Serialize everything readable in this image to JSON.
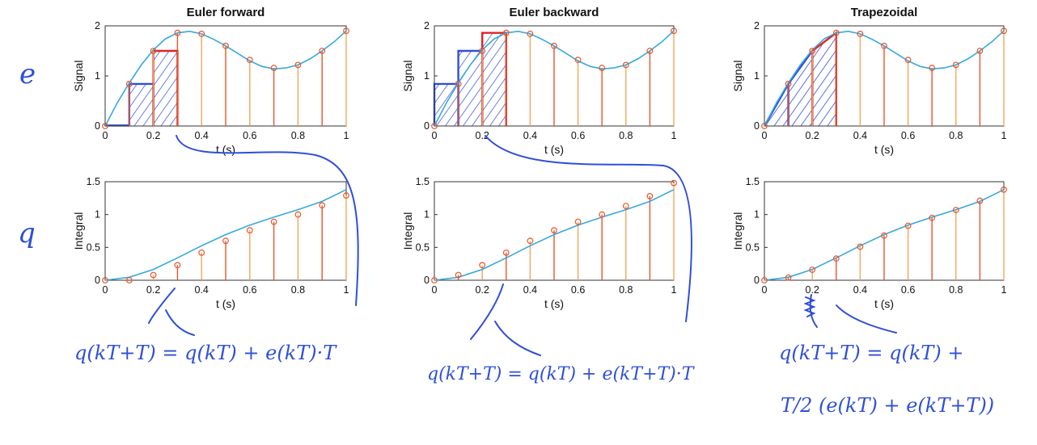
{
  "row_labels": [
    "e",
    "q"
  ],
  "chart_data": [
    {
      "type": "line",
      "title": "Euler forward",
      "xlabel": "t (s)",
      "ylabel": "Signal",
      "xlim": [
        0,
        1
      ],
      "ylim": [
        0,
        2
      ],
      "xticks": [
        "0",
        "0.2",
        "0.4",
        "0.6",
        "0.8",
        "1"
      ],
      "yticks": [
        "0",
        "1",
        "2"
      ],
      "curve": {
        "x": [
          0,
          0.05,
          0.1,
          0.15,
          0.2,
          0.25,
          0.3,
          0.35,
          0.4,
          0.45,
          0.5,
          0.55,
          0.6,
          0.65,
          0.7,
          0.75,
          0.8,
          0.85,
          0.9,
          0.95,
          1.0
        ],
        "y": [
          0,
          0.46,
          0.86,
          1.22,
          1.52,
          1.74,
          1.86,
          1.89,
          1.84,
          1.73,
          1.6,
          1.45,
          1.3,
          1.19,
          1.14,
          1.16,
          1.22,
          1.34,
          1.5,
          1.68,
          1.9
        ]
      },
      "samples": {
        "x": [
          0,
          0.1,
          0.2,
          0.3,
          0.4,
          0.5,
          0.6,
          0.7,
          0.8,
          0.9,
          1.0
        ],
        "y": [
          0,
          0.84,
          1.5,
          1.86,
          1.84,
          1.6,
          1.32,
          1.16,
          1.22,
          1.5,
          1.9
        ]
      },
      "method": "forward"
    },
    {
      "type": "line",
      "title": "Euler backward",
      "xlabel": "t (s)",
      "ylabel": "Signal",
      "xlim": [
        0,
        1
      ],
      "ylim": [
        0,
        2
      ],
      "xticks": [
        "0",
        "0.2",
        "0.4",
        "0.6",
        "0.8",
        "1"
      ],
      "yticks": [
        "0",
        "1",
        "2"
      ],
      "curve": {
        "x": [
          0,
          0.05,
          0.1,
          0.15,
          0.2,
          0.25,
          0.3,
          0.35,
          0.4,
          0.45,
          0.5,
          0.55,
          0.6,
          0.65,
          0.7,
          0.75,
          0.8,
          0.85,
          0.9,
          0.95,
          1.0
        ],
        "y": [
          0,
          0.46,
          0.86,
          1.22,
          1.52,
          1.74,
          1.86,
          1.89,
          1.84,
          1.73,
          1.6,
          1.45,
          1.3,
          1.19,
          1.14,
          1.16,
          1.22,
          1.34,
          1.5,
          1.68,
          1.9
        ]
      },
      "samples": {
        "x": [
          0,
          0.1,
          0.2,
          0.3,
          0.4,
          0.5,
          0.6,
          0.7,
          0.8,
          0.9,
          1.0
        ],
        "y": [
          0,
          0.84,
          1.5,
          1.86,
          1.84,
          1.6,
          1.32,
          1.16,
          1.22,
          1.5,
          1.9
        ]
      },
      "method": "backward"
    },
    {
      "type": "line",
      "title": "Trapezoidal",
      "xlabel": "t (s)",
      "ylabel": "Signal",
      "xlim": [
        0,
        1
      ],
      "ylim": [
        0,
        2
      ],
      "xticks": [
        "0",
        "0.2",
        "0.4",
        "0.6",
        "0.8",
        "1"
      ],
      "yticks": [
        "0",
        "1",
        "2"
      ],
      "curve": {
        "x": [
          0,
          0.05,
          0.1,
          0.15,
          0.2,
          0.25,
          0.3,
          0.35,
          0.4,
          0.45,
          0.5,
          0.55,
          0.6,
          0.65,
          0.7,
          0.75,
          0.8,
          0.85,
          0.9,
          0.95,
          1.0
        ],
        "y": [
          0,
          0.46,
          0.86,
          1.22,
          1.52,
          1.74,
          1.86,
          1.89,
          1.84,
          1.73,
          1.6,
          1.45,
          1.3,
          1.19,
          1.14,
          1.16,
          1.22,
          1.34,
          1.5,
          1.68,
          1.9
        ]
      },
      "samples": {
        "x": [
          0,
          0.1,
          0.2,
          0.3,
          0.4,
          0.5,
          0.6,
          0.7,
          0.8,
          0.9,
          1.0
        ],
        "y": [
          0,
          0.84,
          1.5,
          1.86,
          1.84,
          1.6,
          1.32,
          1.16,
          1.22,
          1.5,
          1.9
        ]
      },
      "method": "trapezoid"
    },
    {
      "type": "line",
      "title": "",
      "xlabel": "t (s)",
      "ylabel": "Integral",
      "xlim": [
        0,
        1
      ],
      "ylim": [
        0,
        1.5
      ],
      "xticks": [
        "0",
        "0.2",
        "0.4",
        "0.6",
        "0.8",
        "1"
      ],
      "yticks": [
        "0",
        "0.5",
        "1",
        "1.5"
      ],
      "curve": {
        "x": [
          0,
          0.1,
          0.2,
          0.3,
          0.4,
          0.5,
          0.6,
          0.7,
          0.8,
          0.9,
          1.0
        ],
        "y": [
          0,
          0.045,
          0.165,
          0.34,
          0.525,
          0.695,
          0.84,
          0.96,
          1.075,
          1.2,
          1.38
        ]
      },
      "samples": {
        "x": [
          0,
          0.1,
          0.2,
          0.3,
          0.4,
          0.5,
          0.6,
          0.7,
          0.8,
          0.9,
          1.0
        ],
        "y": [
          0,
          0,
          0.08,
          0.23,
          0.42,
          0.6,
          0.76,
          0.89,
          1.0,
          1.14,
          1.29
        ]
      }
    },
    {
      "type": "line",
      "title": "",
      "xlabel": "t (s)",
      "ylabel": "Integral",
      "xlim": [
        0,
        1
      ],
      "ylim": [
        0,
        1.5
      ],
      "xticks": [
        "0",
        "0.2",
        "0.4",
        "0.6",
        "0.8",
        "1"
      ],
      "yticks": [
        "0",
        "0.5",
        "1",
        "1.5"
      ],
      "curve": {
        "x": [
          0,
          0.1,
          0.2,
          0.3,
          0.4,
          0.5,
          0.6,
          0.7,
          0.8,
          0.9,
          1.0
        ],
        "y": [
          0,
          0.045,
          0.165,
          0.34,
          0.525,
          0.695,
          0.84,
          0.96,
          1.075,
          1.2,
          1.38
        ]
      },
      "samples": {
        "x": [
          0,
          0.1,
          0.2,
          0.3,
          0.4,
          0.5,
          0.6,
          0.7,
          0.8,
          0.9,
          1.0
        ],
        "y": [
          0,
          0.08,
          0.23,
          0.42,
          0.6,
          0.76,
          0.89,
          1.0,
          1.13,
          1.28,
          1.48
        ]
      }
    },
    {
      "type": "line",
      "title": "",
      "xlabel": "t (s)",
      "ylabel": "Integral",
      "xlim": [
        0,
        1
      ],
      "ylim": [
        0,
        1.5
      ],
      "xticks": [
        "0",
        "0.2",
        "0.4",
        "0.6",
        "0.8",
        "1"
      ],
      "yticks": [
        "0",
        "0.5",
        "1",
        "1.5"
      ],
      "curve": {
        "x": [
          0,
          0.1,
          0.2,
          0.3,
          0.4,
          0.5,
          0.6,
          0.7,
          0.8,
          0.9,
          1.0
        ],
        "y": [
          0,
          0.045,
          0.165,
          0.34,
          0.525,
          0.695,
          0.84,
          0.96,
          1.075,
          1.2,
          1.38
        ]
      },
      "samples": {
        "x": [
          0,
          0.1,
          0.2,
          0.3,
          0.4,
          0.5,
          0.6,
          0.7,
          0.8,
          0.9,
          1.0
        ],
        "y": [
          0,
          0.04,
          0.16,
          0.33,
          0.51,
          0.68,
          0.83,
          0.95,
          1.07,
          1.21,
          1.38
        ]
      }
    }
  ],
  "equations": {
    "forward": "q(kT+T) = q(kT) + e(kT)·T",
    "backward": "q(kT+T) = q(kT) + e(kT+T)·T",
    "trapezoid_line1": "q(kT+T) = q(kT) +",
    "trapezoid_line2": "T/2 (e(kT) + e(kT+T))"
  },
  "colors": {
    "curve": "#36a9dd",
    "stem_odd": "#e8552a",
    "stem_even": "#f2a75a",
    "marker": "#e8552a",
    "pen": "#2f4fd6",
    "highlight": "#e02424"
  }
}
